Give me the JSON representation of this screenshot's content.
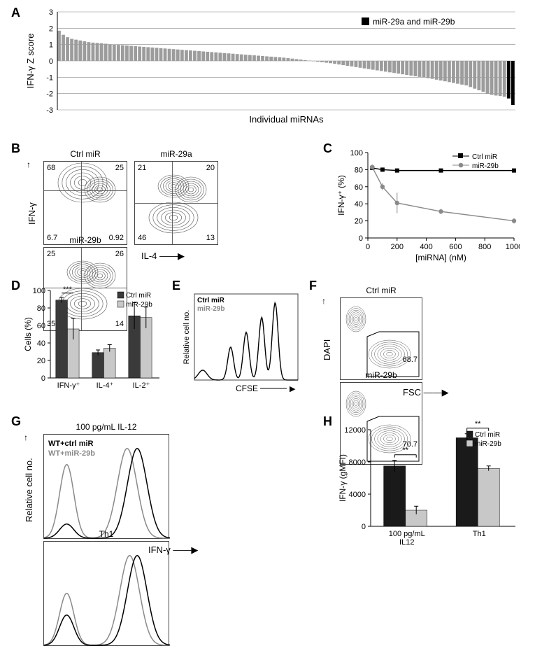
{
  "panelA": {
    "type": "bar",
    "ylabel": "IFN-γ Z score",
    "xlabel": "Individual miRNAs",
    "ylim": [
      -3,
      3
    ],
    "ytick_step": 1,
    "bar_color": "#9c9c9c",
    "highlight_color": "#000000",
    "legend_label": "miR-29a and miR-29b",
    "grid_color": "#888888",
    "n_bars": 108,
    "values": [
      1.85,
      1.6,
      1.45,
      1.35,
      1.3,
      1.25,
      1.2,
      1.15,
      1.12,
      1.1,
      1.08,
      1.05,
      1.02,
      1.0,
      0.98,
      0.96,
      0.94,
      0.92,
      0.9,
      0.88,
      0.86,
      0.84,
      0.82,
      0.8,
      0.78,
      0.76,
      0.74,
      0.72,
      0.7,
      0.68,
      0.66,
      0.64,
      0.62,
      0.6,
      0.58,
      0.56,
      0.54,
      0.52,
      0.5,
      0.48,
      0.46,
      0.44,
      0.42,
      0.4,
      0.38,
      0.36,
      0.34,
      0.32,
      0.3,
      0.28,
      0.26,
      0.24,
      0.22,
      0.2,
      0.17,
      0.14,
      0.11,
      0.08,
      0.05,
      0.02,
      -0.02,
      -0.05,
      -0.08,
      -0.11,
      -0.14,
      -0.18,
      -0.22,
      -0.26,
      -0.3,
      -0.34,
      -0.38,
      -0.42,
      -0.46,
      -0.5,
      -0.54,
      -0.58,
      -0.62,
      -0.66,
      -0.7,
      -0.74,
      -0.78,
      -0.82,
      -0.86,
      -0.9,
      -0.94,
      -0.98,
      -1.02,
      -1.06,
      -1.1,
      -1.15,
      -1.2,
      -1.25,
      -1.3,
      -1.35,
      -1.4,
      -1.45,
      -1.5,
      -1.6,
      -1.7,
      -1.8,
      -1.9,
      -2.0,
      -2.08,
      -2.12,
      -2.15,
      -2.2,
      -2.3,
      -2.7
    ],
    "highlight_indices": [
      106,
      107
    ]
  },
  "panelB": {
    "ylabel": "IFN-γ",
    "xlabel": "IL-4",
    "plots": [
      {
        "title": "Ctrl miR",
        "q1": "68",
        "q2": "25",
        "q3": "6.7",
        "q4": "0.92",
        "vline": 0.45,
        "hline": 0.35
      },
      {
        "title": "miR-29a",
        "q1": "21",
        "q2": "20",
        "q3": "46",
        "q4": "13",
        "vline": 0.45,
        "hline": 0.5
      },
      {
        "title": "miR-29b",
        "q1": "25",
        "q2": "26",
        "q3": "35",
        "q4": "14",
        "vline": 0.45,
        "hline": 0.48
      }
    ]
  },
  "panelC": {
    "type": "line",
    "ylabel": "IFN-γ⁺ (%)",
    "xlabel": "[miRNA] (nM)",
    "xlim": [
      0,
      1000
    ],
    "xtick_step": 200,
    "ylim": [
      0,
      100
    ],
    "ytick_step": 20,
    "series": [
      {
        "name": "Ctrl miR",
        "color": "#000000",
        "marker": "square",
        "x": [
          30,
          100,
          200,
          500,
          1000
        ],
        "y": [
          82,
          80,
          79,
          79,
          79
        ],
        "err": [
          2,
          2,
          2,
          2,
          2
        ]
      },
      {
        "name": "miR-29b",
        "color": "#8a8a8a",
        "marker": "circle",
        "x": [
          30,
          100,
          200,
          500,
          1000
        ],
        "y": [
          83,
          60,
          41,
          31,
          20
        ],
        "err": [
          3,
          4,
          12,
          3,
          3
        ]
      }
    ]
  },
  "panelD": {
    "type": "bar-grouped",
    "ylabel": "Cells (%)",
    "ylim": [
      0,
      100
    ],
    "ytick_step": 20,
    "categories": [
      "IFN-γ⁺",
      "IL-4⁺",
      "IL-2⁺"
    ],
    "groups": [
      {
        "name": "Ctrl miR",
        "color": "#3a3a3a",
        "values": [
          89,
          29,
          71
        ],
        "err": [
          3,
          3,
          15
        ]
      },
      {
        "name": "miR-29b",
        "color": "#c8c8c8",
        "values": [
          56,
          34,
          69
        ],
        "err": [
          12,
          4,
          12
        ]
      }
    ],
    "sig": {
      "label": "***",
      "between": 0
    }
  },
  "panelE": {
    "ylabel": "Relative cell no.",
    "xlabel": "CFSE",
    "legend": [
      {
        "name": "Ctrl miR",
        "color": "#000000"
      },
      {
        "name": "miR-29b",
        "color": "#8a8a8a"
      }
    ],
    "peaks": [
      0.35,
      0.5,
      0.65,
      0.78
    ]
  },
  "panelF": {
    "ylabel": "DAPI",
    "xlabel": "FSC",
    "plots": [
      {
        "title": "Ctrl miR",
        "gate_pct": "68.7"
      },
      {
        "title": "miR-29b",
        "gate_pct": "70.7"
      }
    ]
  },
  "panelG": {
    "ylabel": "Relative cell no.",
    "xlabel": "IFN-γ",
    "plots": [
      {
        "title": "100 pg/mL IL-12",
        "legend": [
          {
            "name": "WT+ctrl miR",
            "color": "#000000"
          },
          {
            "name": "WT+miR-29b",
            "color": "#8a8a8a"
          }
        ]
      },
      {
        "title": "Th1"
      }
    ]
  },
  "panelH": {
    "type": "bar-grouped",
    "ylabel": "IFN-γ (gMFI)",
    "ylim": [
      0,
      12000
    ],
    "ytick_step": 4000,
    "categories": [
      "100 pg/mL\nIL12",
      "Th1"
    ],
    "groups": [
      {
        "name": "Ctrl miR",
        "color": "#1a1a1a",
        "values": [
          7500,
          11000
        ],
        "err": [
          700,
          500
        ]
      },
      {
        "name": "miR-29b",
        "color": "#c8c8c8",
        "values": [
          2000,
          7200
        ],
        "err": [
          500,
          300
        ]
      }
    ],
    "sig": [
      {
        "label": "**",
        "over": 0
      },
      {
        "label": "**",
        "over": 1
      }
    ]
  },
  "labels": {
    "A": "A",
    "B": "B",
    "C": "C",
    "D": "D",
    "E": "E",
    "F": "F",
    "G": "G",
    "H": "H"
  }
}
